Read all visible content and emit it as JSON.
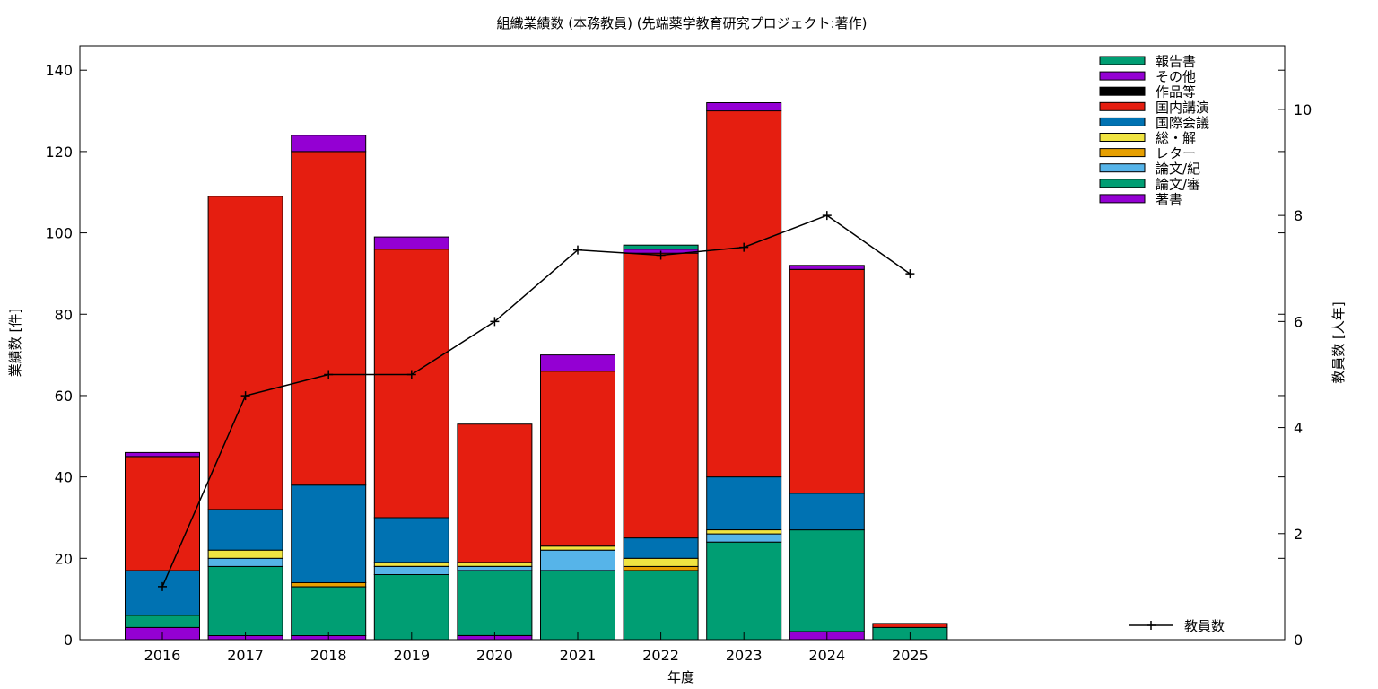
{
  "chart_data": {
    "type": "bar",
    "stacked": true,
    "title": "組織業績数 (本務教員) (先端薬学教育研究プロジェクト:著作)",
    "xlabel": "年度",
    "ylabel": "業績数 [件]",
    "y2label": "教員数 [人年]",
    "ylim": [
      0,
      146
    ],
    "y2lim": [
      0,
      11.2
    ],
    "yticks": [
      0,
      20,
      40,
      60,
      80,
      100,
      120,
      140
    ],
    "y2ticks": [
      0,
      2,
      4,
      6,
      8,
      10
    ],
    "grid": false,
    "legend_position": "top-right",
    "categories": [
      "2016",
      "2017",
      "2018",
      "2019",
      "2020",
      "2021",
      "2022",
      "2023",
      "2024",
      "2025"
    ],
    "series": [
      {
        "name": "著書",
        "color": "#9400d3",
        "values": [
          3,
          1,
          1,
          0,
          1,
          0,
          0,
          0,
          2,
          0
        ]
      },
      {
        "name": "論文/審",
        "color": "#009e73",
        "values": [
          3,
          17,
          12,
          16,
          16,
          17,
          17,
          24,
          25,
          3
        ]
      },
      {
        "name": "論文/紀",
        "color": "#56b4e9",
        "values": [
          0,
          2,
          0,
          2,
          1,
          5,
          0,
          2,
          0,
          0
        ]
      },
      {
        "name": "レター",
        "color": "#e69f00",
        "values": [
          0,
          0,
          1,
          0,
          0,
          0,
          1,
          0,
          0,
          0
        ]
      },
      {
        "name": "総・解",
        "color": "#f0e442",
        "values": [
          0,
          2,
          0,
          1,
          1,
          1,
          2,
          1,
          0,
          0
        ]
      },
      {
        "name": "国際会議",
        "color": "#0072b2",
        "values": [
          11,
          10,
          24,
          11,
          0,
          0,
          5,
          13,
          9,
          0
        ]
      },
      {
        "name": "国内講演",
        "color": "#e51e10",
        "values": [
          28,
          77,
          82,
          66,
          34,
          43,
          70,
          90,
          55,
          1
        ]
      },
      {
        "name": "作品等",
        "color": "#000000",
        "values": [
          0,
          0,
          0,
          0,
          0,
          0,
          0,
          0,
          0,
          0
        ]
      },
      {
        "name": "その他",
        "color": "#9400d3",
        "values": [
          1,
          0,
          4,
          3,
          0,
          4,
          1,
          2,
          1,
          0
        ]
      },
      {
        "name": "報告書",
        "color": "#009e73",
        "values": [
          0,
          0,
          0,
          0,
          0,
          0,
          1,
          0,
          0,
          0
        ]
      }
    ],
    "line_series": {
      "name": "教員数",
      "axis": "y2",
      "color": "#000000",
      "values": [
        1.0,
        4.6,
        5.0,
        5.0,
        6.0,
        7.35,
        7.25,
        7.4,
        8.0,
        6.9
      ]
    }
  }
}
